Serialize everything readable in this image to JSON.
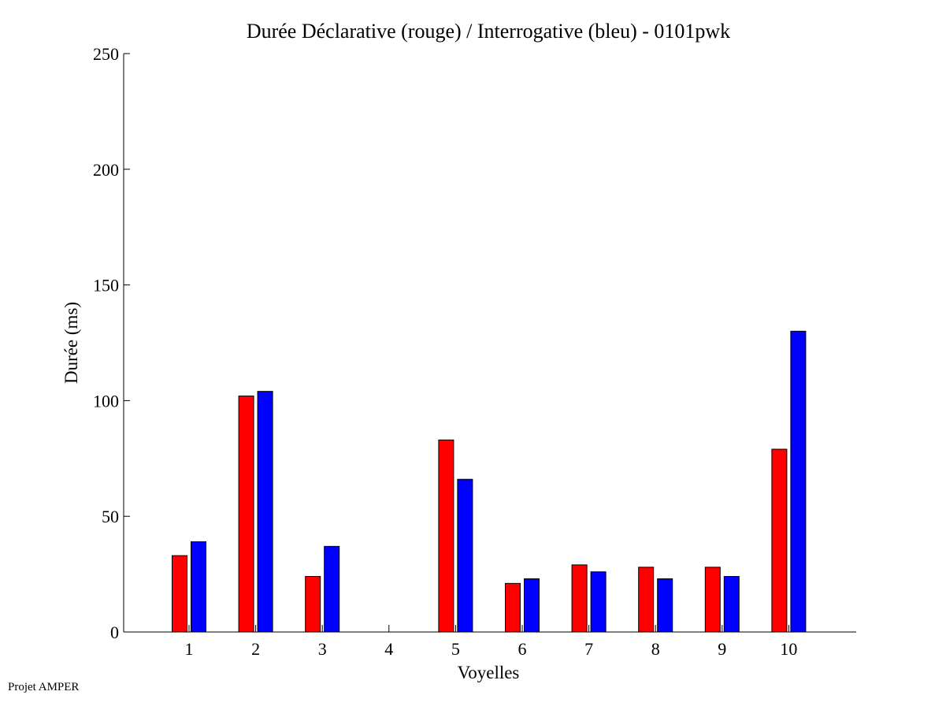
{
  "footer": "Projet AMPER",
  "chart_data": {
    "type": "bar",
    "title": "Durée Déclarative (rouge) / Interrogative (bleu) - 0101pwk",
    "xlabel": "Voyelles",
    "ylabel": "Durée (ms)",
    "ylim": [
      0,
      250
    ],
    "yticks": [
      0,
      50,
      100,
      150,
      200,
      250
    ],
    "categories": [
      "1",
      "2",
      "3",
      "4",
      "5",
      "6",
      "7",
      "8",
      "9",
      "10"
    ],
    "grid": false,
    "series": [
      {
        "color": "#ff0000",
        "values": [
          33,
          102,
          24,
          0,
          83,
          21,
          29,
          28,
          28,
          79
        ]
      },
      {
        "color": "#0000ff",
        "values": [
          39,
          104,
          37,
          0,
          66,
          23,
          26,
          23,
          24,
          130
        ]
      }
    ]
  }
}
